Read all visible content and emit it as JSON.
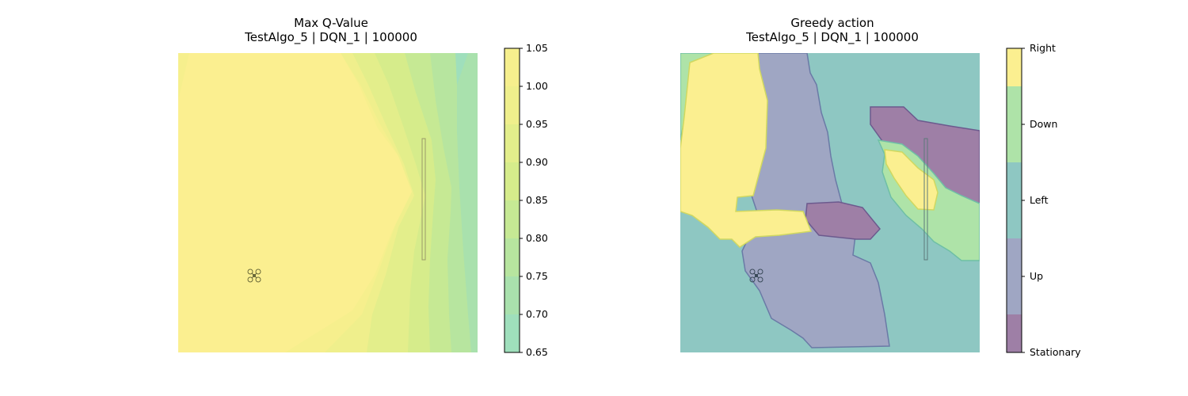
{
  "chart_data": [
    {
      "type": "heatmap",
      "title": "Max Q-Value",
      "subtitle": "TestAlgo_5 | DQN_1 | 100000",
      "colorbar": {
        "min": 0.65,
        "max": 1.05,
        "ticks": [
          "1.05",
          "1.00",
          "0.95",
          "0.90",
          "0.85",
          "0.80",
          "0.75",
          "0.70",
          "0.65"
        ],
        "colors": [
          "#9fdfbc",
          "#a9e1ad",
          "#b7e59f",
          "#c6e994",
          "#d6ec8b",
          "#e3ee8b",
          "#efef8c",
          "#f6ef8d",
          "#fbef90"
        ]
      },
      "grid": false,
      "axes_visible": false,
      "contour_levels": [
        {
          "level": 1.0,
          "value_band": "0.95-1.00"
        },
        {
          "level": 0.95,
          "value_band": "0.90-0.95"
        },
        {
          "level": 0.9,
          "value_band": "0.85-0.90"
        },
        {
          "level": 0.85,
          "value_band": "0.80-0.85"
        },
        {
          "level": 0.8,
          "value_band": "0.75-0.80"
        },
        {
          "level": 0.75,
          "value_band": "0.70-0.75"
        }
      ],
      "annotations": [
        "drone-marker",
        "wall-obstacle"
      ]
    },
    {
      "type": "heatmap",
      "title": "Greedy action",
      "subtitle": "TestAlgo_5 | DQN_1 | 100000",
      "categories": [
        "Stationary",
        "Up",
        "Left",
        "Down",
        "Right"
      ],
      "category_colors": [
        "#9e7fa6",
        "#9fa6c3",
        "#8ec7c2",
        "#aee3a8",
        "#fbef90"
      ],
      "colorbar": {
        "ticks": [
          "Right",
          "Down",
          "Left",
          "Up",
          "Stationary"
        ]
      },
      "grid": false,
      "axes_visible": false,
      "annotations": [
        "drone-marker",
        "wall-obstacle"
      ]
    }
  ]
}
